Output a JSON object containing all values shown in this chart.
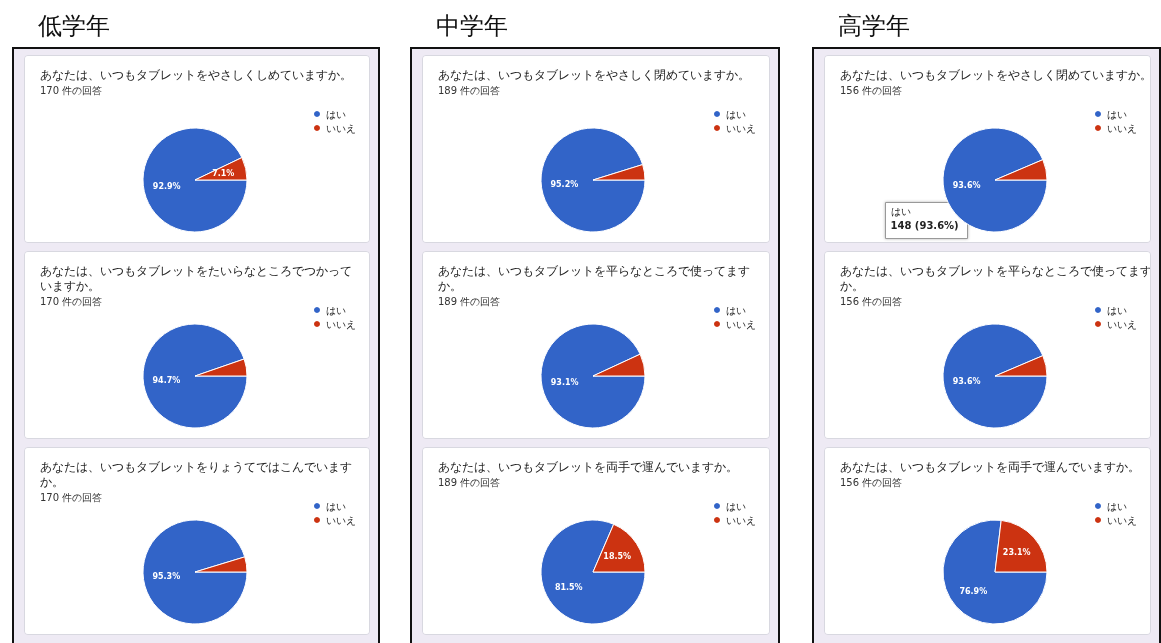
{
  "chart_data": [
    {
      "type": "pie",
      "title": "あなたは、いつもタブレットをやさしくしめていますか。",
      "subtitle": "170 件の回答",
      "annotations": [
        "低学年"
      ],
      "categories": [
        "はい",
        "いいえ"
      ],
      "values": [
        92.9,
        7.1
      ],
      "colors": [
        "#3264c8",
        "#cc3311"
      ],
      "value_labels": [
        "92.9%",
        "7.1%"
      ],
      "legend": "right"
    },
    {
      "type": "pie",
      "title": "あなたは、いつもタブレットをたいらなところでつかっていますか。",
      "subtitle": "170 件の回答",
      "categories": [
        "はい",
        "いいえ"
      ],
      "values": [
        94.7,
        5.3
      ],
      "colors": [
        "#3264c8",
        "#cc3311"
      ],
      "value_labels": [
        "94.7%",
        null
      ],
      "legend": "right"
    },
    {
      "type": "pie",
      "title": "あなたは、いつもタブレットをりょうてではこんでいますか。",
      "subtitle": "170 件の回答",
      "categories": [
        "はい",
        "いいえ"
      ],
      "values": [
        95.3,
        4.7
      ],
      "colors": [
        "#3264c8",
        "#cc3311"
      ],
      "value_labels": [
        "95.3%",
        null
      ],
      "legend": "right"
    },
    {
      "type": "pie",
      "title": "あなたは、いつもタブレットをやさしく閉めていますか。",
      "subtitle": "189 件の回答",
      "annotations": [
        "中学年"
      ],
      "categories": [
        "はい",
        "いいえ"
      ],
      "values": [
        95.2,
        4.8
      ],
      "colors": [
        "#3264c8",
        "#cc3311"
      ],
      "value_labels": [
        "95.2%",
        null
      ],
      "legend": "right"
    },
    {
      "type": "pie",
      "title": "あなたは、いつもタブレットを平らなところで使ってますか。",
      "subtitle": "189 件の回答",
      "categories": [
        "はい",
        "いいえ"
      ],
      "values": [
        93.1,
        6.9
      ],
      "colors": [
        "#3264c8",
        "#cc3311"
      ],
      "value_labels": [
        "93.1%",
        null
      ],
      "legend": "right"
    },
    {
      "type": "pie",
      "title": "あなたは、いつもタブレットを両手で運んでいますか。",
      "subtitle": "189 件の回答",
      "categories": [
        "はい",
        "いいえ"
      ],
      "values": [
        81.5,
        18.5
      ],
      "colors": [
        "#3264c8",
        "#cc3311"
      ],
      "value_labels": [
        "81.5%",
        "18.5%"
      ],
      "legend": "right"
    },
    {
      "type": "pie",
      "title": "あなたは、いつもタブレットをやさしく閉めていますか。",
      "subtitle": "156 件の回答",
      "annotations": [
        "高学年",
        "はい",
        "148 (93.6%)"
      ],
      "categories": [
        "はい",
        "いいえ"
      ],
      "values": [
        93.6,
        6.4
      ],
      "colors": [
        "#3264c8",
        "#cc3311"
      ],
      "value_labels": [
        "93.6%",
        null
      ],
      "legend": "right"
    },
    {
      "type": "pie",
      "title": "あなたは、いつもタブレットを平らなところで使ってますか。",
      "subtitle": "156 件の回答",
      "categories": [
        "はい",
        "いいえ"
      ],
      "values": [
        93.6,
        6.4
      ],
      "colors": [
        "#3264c8",
        "#cc3311"
      ],
      "value_labels": [
        "93.6%",
        null
      ],
      "legend": "right"
    },
    {
      "type": "pie",
      "title": "あなたは、いつもタブレットを両手で運んでいますか。",
      "subtitle": "156 件の回答",
      "categories": [
        "はい",
        "いいえ"
      ],
      "values": [
        76.9,
        23.1
      ],
      "colors": [
        "#3264c8",
        "#cc3311"
      ],
      "value_labels": [
        "76.9%",
        "23.1%"
      ],
      "legend": "right"
    }
  ]
}
